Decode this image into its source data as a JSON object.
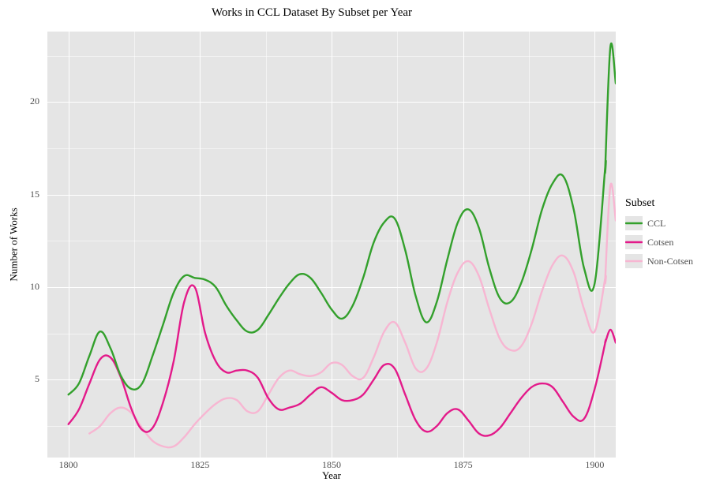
{
  "chart": {
    "type": "line",
    "title": "Works in CCL Dataset By Subset per Year",
    "title_fontsize": 15,
    "background_color": "#ffffff",
    "plot_background_color": "#e5e5e5",
    "grid_color": "#ffffff",
    "x": {
      "label": "Year",
      "label_fontsize": 13,
      "tick_fontsize": 12,
      "ticks": [
        1800,
        1825,
        1850,
        1875,
        1900
      ],
      "minor_step": 12.5,
      "lim": [
        1796,
        1904
      ]
    },
    "y": {
      "label": "Number of Works",
      "label_fontsize": 13,
      "tick_fontsize": 12,
      "ticks": [
        5,
        10,
        15,
        20
      ],
      "minor_step": 2.5,
      "lim": [
        0.8,
        23.8
      ]
    },
    "legend": {
      "title": "Subset",
      "title_fontsize": 14,
      "label_fontsize": 12,
      "items": [
        {
          "label": "CCL",
          "color": "#33a02c"
        },
        {
          "label": "Cotsen",
          "color": "#e31a8a"
        },
        {
          "label": "Non-Cotsen",
          "color": "#f7b6d2"
        }
      ]
    },
    "line_width": 2.4,
    "series": {
      "years": [
        1800,
        1802,
        1804,
        1806,
        1808,
        1810,
        1812,
        1814,
        1816,
        1818,
        1820,
        1822,
        1824,
        1826,
        1828,
        1830,
        1832,
        1834,
        1836,
        1838,
        1840,
        1842,
        1844,
        1846,
        1848,
        1850,
        1852,
        1854,
        1856,
        1858,
        1860,
        1862,
        1864,
        1866,
        1868,
        1870,
        1872,
        1874,
        1876,
        1878,
        1880,
        1882,
        1884,
        1886,
        1888,
        1890,
        1892,
        1894,
        1896,
        1898,
        1900,
        1902
      ],
      "CCL": [
        4.2,
        4.8,
        6.3,
        7.6,
        6.7,
        5.2,
        4.5,
        4.8,
        6.3,
        8.0,
        9.7,
        10.6,
        10.5,
        10.4,
        10.0,
        9.0,
        8.2,
        7.6,
        7.7,
        8.5,
        9.4,
        10.2,
        10.7,
        10.5,
        9.7,
        8.8,
        8.3,
        9.0,
        10.5,
        12.4,
        13.5,
        13.7,
        12.0,
        9.5,
        8.1,
        9.2,
        11.5,
        13.5,
        14.2,
        13.2,
        11.0,
        9.4,
        9.2,
        10.2,
        12.0,
        14.2,
        15.6,
        16.0,
        14.2,
        11.0,
        10.2,
        16.5
      ],
      "CCL_tail": [
        [
          1902,
          16.5
        ],
        [
          1903,
          23.0
        ],
        [
          1904,
          21.0
        ]
      ],
      "Cotsen": [
        2.6,
        3.4,
        4.8,
        6.1,
        6.2,
        5.1,
        3.4,
        2.3,
        2.4,
        3.8,
        6.0,
        9.2,
        10.0,
        7.5,
        6.0,
        5.4,
        5.5,
        5.5,
        5.1,
        4.0,
        3.4,
        3.5,
        3.7,
        4.2,
        4.6,
        4.3,
        3.9,
        3.9,
        4.2,
        5.0,
        5.8,
        5.6,
        4.2,
        2.8,
        2.2,
        2.5,
        3.2,
        3.4,
        2.8,
        2.1,
        2.0,
        2.4,
        3.2,
        4.0,
        4.6,
        4.8,
        4.6,
        3.8,
        3.0,
        2.9,
        4.5,
        7.0
      ],
      "Cotsen_tail": [
        [
          1902,
          7.0
        ],
        [
          1903,
          7.7
        ],
        [
          1904,
          7.0
        ]
      ],
      "NonCotsen": [
        null,
        null,
        2.1,
        2.5,
        3.2,
        3.5,
        3.2,
        2.4,
        1.7,
        1.4,
        1.4,
        1.9,
        2.6,
        3.2,
        3.7,
        4.0,
        3.9,
        3.3,
        3.3,
        4.2,
        5.1,
        5.5,
        5.3,
        5.2,
        5.4,
        5.9,
        5.8,
        5.2,
        5.1,
        6.2,
        7.6,
        8.1,
        7.0,
        5.6,
        5.6,
        7.0,
        9.2,
        10.8,
        11.4,
        10.6,
        8.8,
        7.2,
        6.6,
        6.8,
        8.0,
        9.8,
        11.2,
        11.7,
        10.8,
        8.8,
        7.6,
        10.5
      ],
      "NonCotsen_tail": [
        [
          1902,
          10.5
        ],
        [
          1903,
          15.5
        ],
        [
          1904,
          13.6
        ]
      ]
    }
  }
}
